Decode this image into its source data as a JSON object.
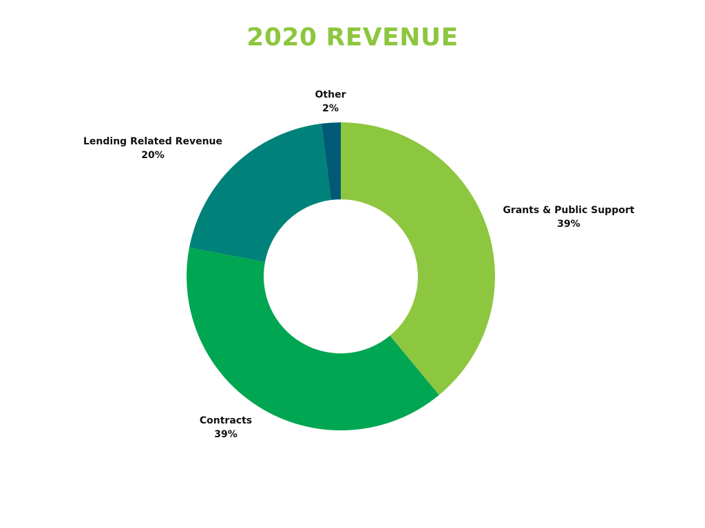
{
  "chart_data": {
    "type": "pie",
    "title": "2020 REVENUE",
    "categories": [
      "Grants & Public Support",
      "Contracts",
      "Lending Related Revenue",
      "Other"
    ],
    "values": [
      39,
      39,
      20,
      2
    ],
    "percent_labels": [
      "39%",
      "39%",
      "20%",
      "2%"
    ],
    "colors": [
      "#8dc63f",
      "#00a651",
      "#00827a",
      "#005a75"
    ],
    "donut": true,
    "legend": "none"
  }
}
